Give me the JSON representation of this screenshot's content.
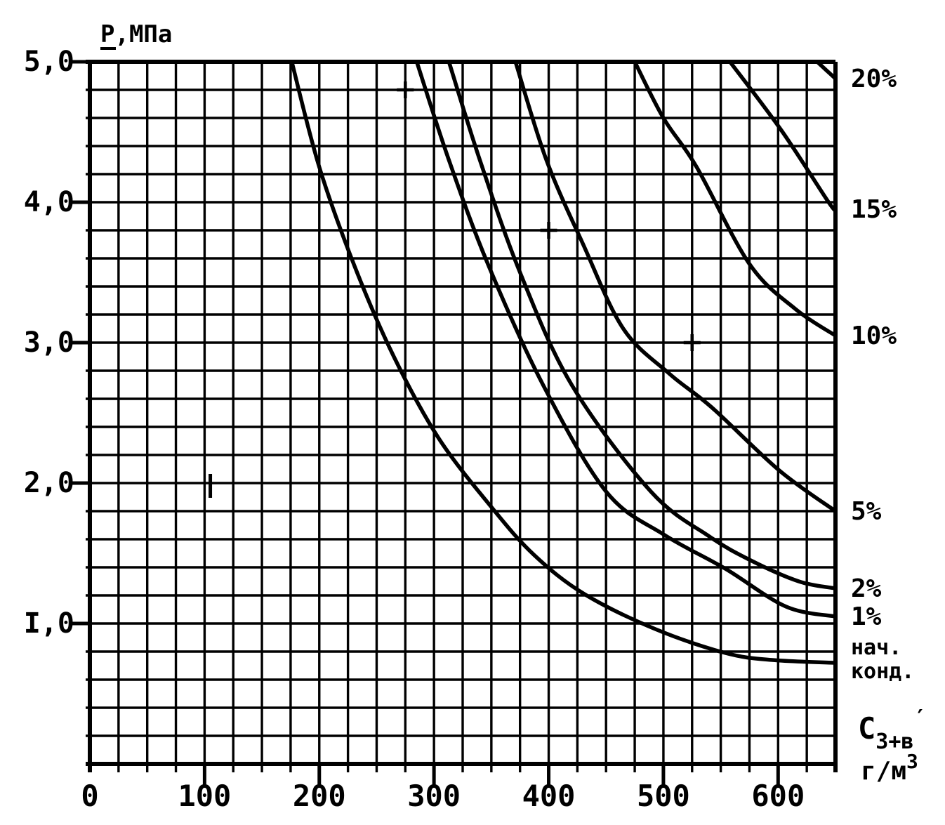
{
  "page": {
    "background": "#ffffff",
    "ink": "#000000"
  },
  "chart_data": {
    "type": "line",
    "title": "",
    "description": "Scanned Russian engineering nomogram: pressure P (MPa) vs C3+ heavy-component content (g/m3) with iso-lines of condensate percentage and the onset-of-condensation curve",
    "grid": {
      "on": true,
      "minor_x_step": 25,
      "minor_y_step": 0.2
    },
    "legend_position": "right-edge-labels",
    "y_axis": {
      "title": "Р,МПа",
      "range": [
        0,
        5
      ],
      "ticks": [
        {
          "value": 5,
          "label": "5,0"
        },
        {
          "value": 4,
          "label": "4,0"
        },
        {
          "value": 3,
          "label": "3,0"
        },
        {
          "value": 2,
          "label": "2,0"
        },
        {
          "value": 1,
          "label": "I,0"
        }
      ]
    },
    "x_axis": {
      "title": {
        "symbol": "С",
        "subscript": "3+в",
        "prime": "′",
        "unit": "г/м",
        "unit_superscript": "3"
      },
      "range": [
        0,
        650
      ],
      "ticks": [
        {
          "value": 0,
          "label": "0"
        },
        {
          "value": 100,
          "label": "100"
        },
        {
          "value": 200,
          "label": "200"
        },
        {
          "value": 300,
          "label": "300"
        },
        {
          "value": 400,
          "label": "400"
        },
        {
          "value": 500,
          "label": "500"
        },
        {
          "value": 600,
          "label": "600"
        }
      ]
    },
    "series": [
      {
        "name": "curve-20pct",
        "label": "20%",
        "points": [
          [
            634,
            5.0
          ],
          [
            642,
            4.94
          ],
          [
            650,
            4.88
          ]
        ]
      },
      {
        "name": "curve-15pct",
        "label": "15%",
        "points": [
          [
            558,
            5.0
          ],
          [
            603,
            4.51
          ],
          [
            644,
            4.0
          ],
          [
            650,
            3.95
          ]
        ]
      },
      {
        "name": "curve-10pct",
        "label": "10%",
        "points": [
          [
            475,
            5.0
          ],
          [
            500,
            4.6
          ],
          [
            529,
            4.25
          ],
          [
            575,
            3.56
          ],
          [
            615,
            3.24
          ],
          [
            650,
            3.05
          ]
        ]
      },
      {
        "name": "curve-5pct",
        "label": "5%",
        "points": [
          [
            371,
            5.0
          ],
          [
            398,
            4.3
          ],
          [
            430,
            3.7
          ],
          [
            465,
            3.1
          ],
          [
            505,
            2.78
          ],
          [
            542,
            2.54
          ],
          [
            601,
            2.09
          ],
          [
            650,
            1.8
          ]
        ]
      },
      {
        "name": "curve-2pct",
        "label": "2%",
        "points": [
          [
            313,
            5.0
          ],
          [
            340,
            4.3
          ],
          [
            375,
            3.5
          ],
          [
            420,
            2.7
          ],
          [
            489,
            1.94
          ],
          [
            540,
            1.62
          ],
          [
            576,
            1.45
          ],
          [
            618,
            1.3
          ],
          [
            650,
            1.25
          ]
        ]
      },
      {
        "name": "curve-1pct",
        "label": "1%",
        "points": [
          [
            285,
            5.0
          ],
          [
            313,
            4.3
          ],
          [
            347,
            3.56
          ],
          [
            395,
            2.7
          ],
          [
            450,
            1.94
          ],
          [
            501,
            1.63
          ],
          [
            554,
            1.39
          ],
          [
            607,
            1.12
          ],
          [
            650,
            1.05
          ]
        ]
      },
      {
        "name": "curve-onset-of-condensation",
        "label": "нач.\nконд.",
        "points": [
          [
            176,
            5.0
          ],
          [
            200,
            4.25
          ],
          [
            231,
            3.54
          ],
          [
            265,
            2.9
          ],
          [
            304,
            2.32
          ],
          [
            350,
            1.83
          ],
          [
            387,
            1.49
          ],
          [
            431,
            1.21
          ],
          [
            493,
            0.96
          ],
          [
            554,
            0.79
          ],
          [
            595,
            0.74
          ],
          [
            650,
            0.72
          ]
        ]
      }
    ],
    "markers": {
      "plus": [
        [
          275,
          4.8
        ],
        [
          400,
          3.8
        ],
        [
          525,
          3.0
        ]
      ],
      "dash": [
        [
          105,
          1.98
        ]
      ]
    }
  }
}
